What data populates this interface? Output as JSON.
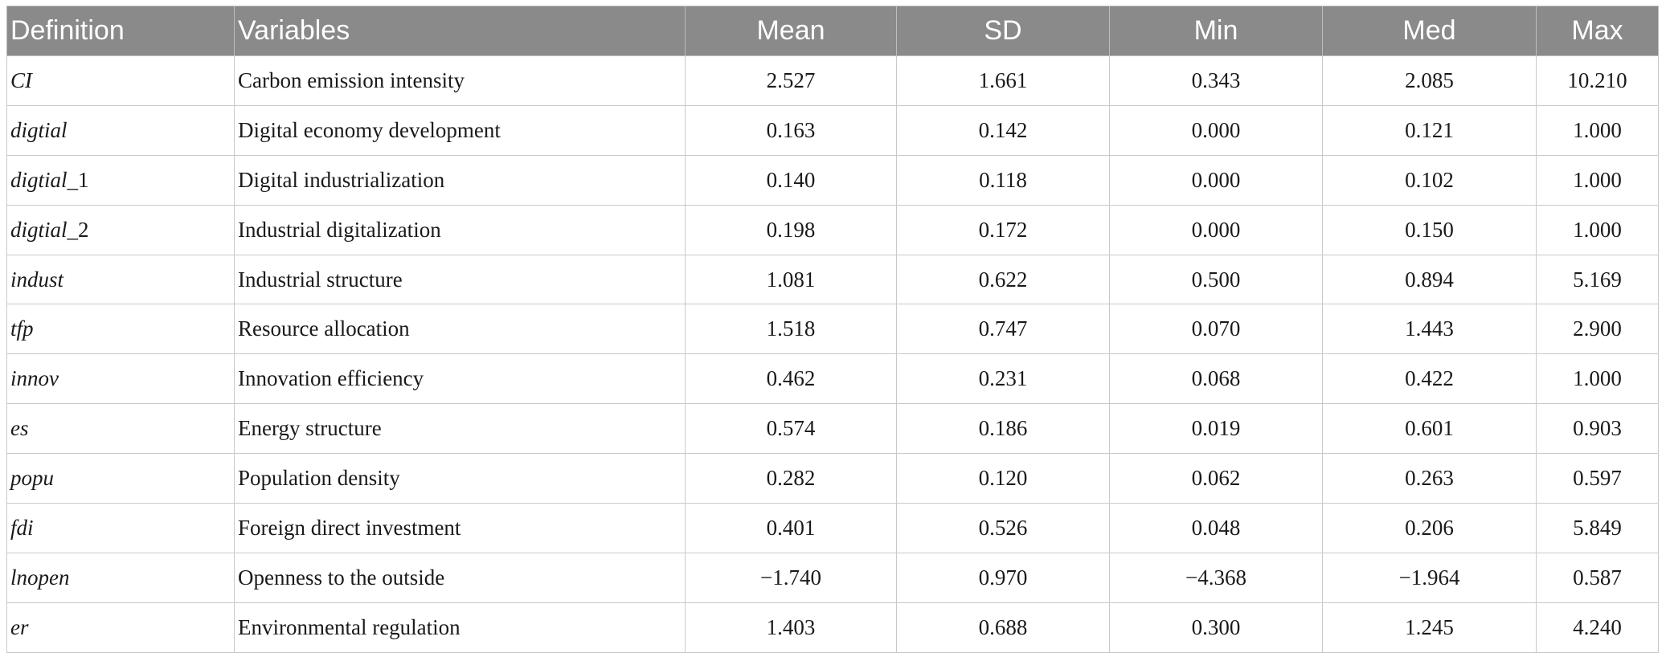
{
  "table": {
    "headers": [
      "Definition",
      "Variables",
      "Mean",
      "SD",
      "Min",
      "Med",
      "Max"
    ],
    "rows": [
      {
        "symbol": "CI",
        "suffix": "",
        "description": "Carbon emission intensity",
        "mean": "2.527",
        "sd": "1.661",
        "min": "0.343",
        "med": "2.085",
        "max": "10.210"
      },
      {
        "symbol": "digtial",
        "suffix": "",
        "description": "Digital economy development",
        "mean": "0.163",
        "sd": "0.142",
        "min": "0.000",
        "med": "0.121",
        "max": "1.000"
      },
      {
        "symbol": "digtial",
        "suffix": "_1",
        "description": "Digital industrialization",
        "mean": "0.140",
        "sd": "0.118",
        "min": "0.000",
        "med": "0.102",
        "max": "1.000"
      },
      {
        "symbol": "digtial",
        "suffix": "_2",
        "description": "Industrial digitalization",
        "mean": "0.198",
        "sd": "0.172",
        "min": "0.000",
        "med": "0.150",
        "max": "1.000"
      },
      {
        "symbol": "indust",
        "suffix": "",
        "description": "Industrial structure",
        "mean": "1.081",
        "sd": "0.622",
        "min": "0.500",
        "med": "0.894",
        "max": "5.169"
      },
      {
        "symbol": "tfp",
        "suffix": "",
        "description": "Resource allocation",
        "mean": "1.518",
        "sd": "0.747",
        "min": "0.070",
        "med": "1.443",
        "max": "2.900"
      },
      {
        "symbol": "innov",
        "suffix": "",
        "description": "Innovation efficiency",
        "mean": "0.462",
        "sd": "0.231",
        "min": "0.068",
        "med": "0.422",
        "max": "1.000"
      },
      {
        "symbol": "es",
        "suffix": "",
        "description": "Energy structure",
        "mean": "0.574",
        "sd": "0.186",
        "min": "0.019",
        "med": "0.601",
        "max": "0.903"
      },
      {
        "symbol": "popu",
        "suffix": "",
        "description": "Population density",
        "mean": "0.282",
        "sd": "0.120",
        "min": "0.062",
        "med": "0.263",
        "max": "0.597"
      },
      {
        "symbol": "fdi",
        "suffix": "",
        "description": "Foreign direct investment",
        "mean": "0.401",
        "sd": "0.526",
        "min": "0.048",
        "med": "0.206",
        "max": "5.849"
      },
      {
        "symbol": "lnopen",
        "suffix": "",
        "description": "Openness to the outside",
        "mean": "−1.740",
        "sd": "0.970",
        "min": "−4.368",
        "med": "−1.964",
        "max": "0.587"
      },
      {
        "symbol": "er",
        "suffix": "",
        "description": "Environmental regulation",
        "mean": "1.403",
        "sd": "0.688",
        "min": "0.300",
        "med": "1.245",
        "max": "4.240"
      }
    ]
  }
}
